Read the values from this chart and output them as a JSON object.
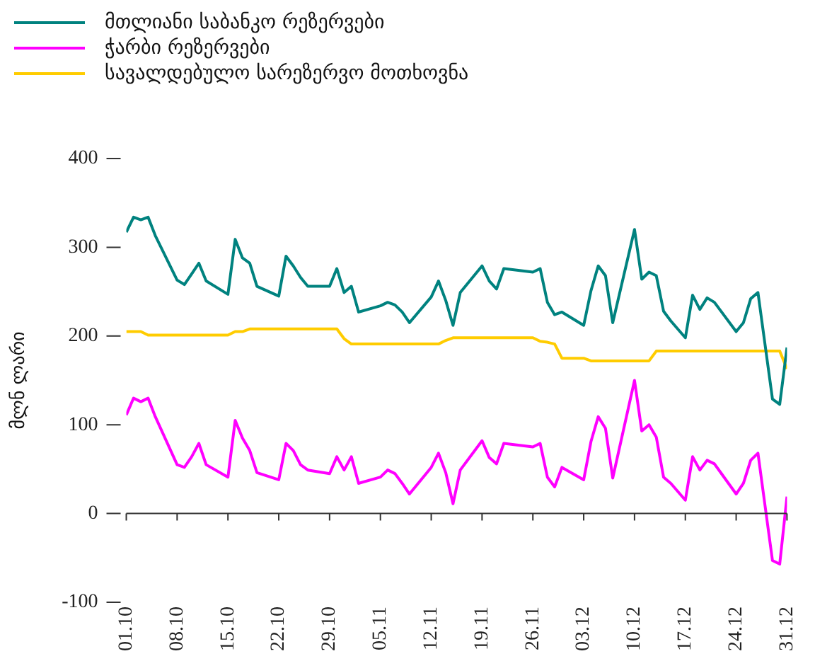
{
  "chart_data": {
    "type": "line",
    "ylabel": "მლნ ლარი",
    "legend": "top left",
    "marker": "none",
    "line_style": "solid",
    "x": [
      "--10-01",
      "--10-02",
      "--10-03",
      "--10-04",
      "--10-05",
      "--10-08",
      "--10-09",
      "--10-10",
      "--10-11",
      "--10-12",
      "--10-15",
      "--10-16",
      "--10-17",
      "--10-18",
      "--10-19",
      "--10-22",
      "--10-23",
      "--10-24",
      "--10-25",
      "--10-26",
      "--10-29",
      "--10-30",
      "--10-31",
      "--11-01",
      "--11-02",
      "--11-05",
      "--11-06",
      "--11-07",
      "--11-08",
      "--11-09",
      "--11-12",
      "--11-13",
      "--11-14",
      "--11-15",
      "--11-16",
      "--11-19",
      "--11-20",
      "--11-21",
      "--11-22",
      "--11-26",
      "--11-27",
      "--11-28",
      "--11-29",
      "--11-30",
      "--12-03",
      "--12-04",
      "--12-05",
      "--12-06",
      "--12-07",
      "--12-10",
      "--12-11",
      "--12-12",
      "--12-13",
      "--12-14",
      "--12-15",
      "--12-17",
      "--12-18",
      "--12-19",
      "--12-20",
      "--12-21",
      "--12-24",
      "--12-25",
      "--12-26",
      "--12-27",
      "--12-29",
      "--12-30",
      "--12-31"
    ],
    "series": [
      {
        "name": "მთლიანი საბანკო რეზერვები",
        "color": "#00827f",
        "values": [
          317,
          334,
          331,
          334,
          313,
          263,
          258,
          270,
          282,
          262,
          247,
          309,
          288,
          282,
          256,
          245,
          290,
          279,
          266,
          256,
          256,
          276,
          249,
          256,
          227,
          234,
          238,
          235,
          227,
          215,
          244,
          262,
          240,
          212,
          249,
          279,
          262,
          253,
          276,
          272,
          276,
          238,
          224,
          227,
          212,
          251,
          279,
          268,
          215,
          320,
          264,
          272,
          268,
          228,
          217,
          198,
          246,
          230,
          243,
          238,
          205,
          215,
          242,
          249,
          129,
          123,
          187
        ]
      },
      {
        "name": "ჭარბი რეზერვები",
        "color": "#ff00ff",
        "values": [
          111,
          130,
          126,
          130,
          109,
          55,
          52,
          64,
          79,
          55,
          41,
          105,
          85,
          71,
          46,
          38,
          79,
          71,
          55,
          49,
          45,
          64,
          49,
          64,
          34,
          41,
          49,
          45,
          34,
          22,
          52,
          68,
          46,
          11,
          49,
          82,
          63,
          56,
          79,
          75,
          79,
          41,
          30,
          52,
          38,
          81,
          109,
          96,
          40,
          150,
          93,
          100,
          86,
          41,
          34,
          15,
          64,
          49,
          60,
          56,
          22,
          34,
          60,
          68,
          -53,
          -57,
          19
        ]
      },
      {
        "name": "სავალდებულო სარეზერვო მოთხოვნა",
        "color": "#ffcc00",
        "values": [
          205,
          205,
          205,
          201,
          201,
          201,
          201,
          201,
          201,
          201,
          201,
          205,
          205,
          208,
          208,
          208,
          208,
          208,
          208,
          208,
          208,
          208,
          197,
          191,
          191,
          191,
          191,
          191,
          191,
          191,
          191,
          191,
          195,
          198,
          198,
          198,
          198,
          198,
          198,
          198,
          194,
          193,
          191,
          175,
          175,
          172,
          172,
          172,
          172,
          172,
          172,
          172,
          183,
          183,
          183,
          183,
          183,
          183,
          183,
          183,
          183,
          183,
          183,
          183,
          183,
          183,
          163
        ]
      }
    ],
    "ylim": [
      -100,
      400
    ],
    "yticks": [
      -100,
      0,
      100,
      200,
      300,
      400
    ],
    "xlim": [
      "--10-01",
      "--12-31"
    ],
    "xticks": [
      {
        "value": "--10-01",
        "label": "01.10"
      },
      {
        "value": "--10-08",
        "label": "08.10"
      },
      {
        "value": "--10-15",
        "label": "15.10"
      },
      {
        "value": "--10-22",
        "label": "22.10"
      },
      {
        "value": "--10-29",
        "label": "29.10"
      },
      {
        "value": "--11-05",
        "label": "05.11"
      },
      {
        "value": "--11-12",
        "label": "12.11"
      },
      {
        "value": "--11-19",
        "label": "19.11"
      },
      {
        "value": "--11-26",
        "label": "26.11"
      },
      {
        "value": "--12-03",
        "label": "03.12"
      },
      {
        "value": "--12-10",
        "label": "10.12"
      },
      {
        "value": "--12-17",
        "label": "17.12"
      },
      {
        "value": "--12-24",
        "label": "24.12"
      },
      {
        "value": "--12-31",
        "label": "31.12"
      }
    ]
  }
}
